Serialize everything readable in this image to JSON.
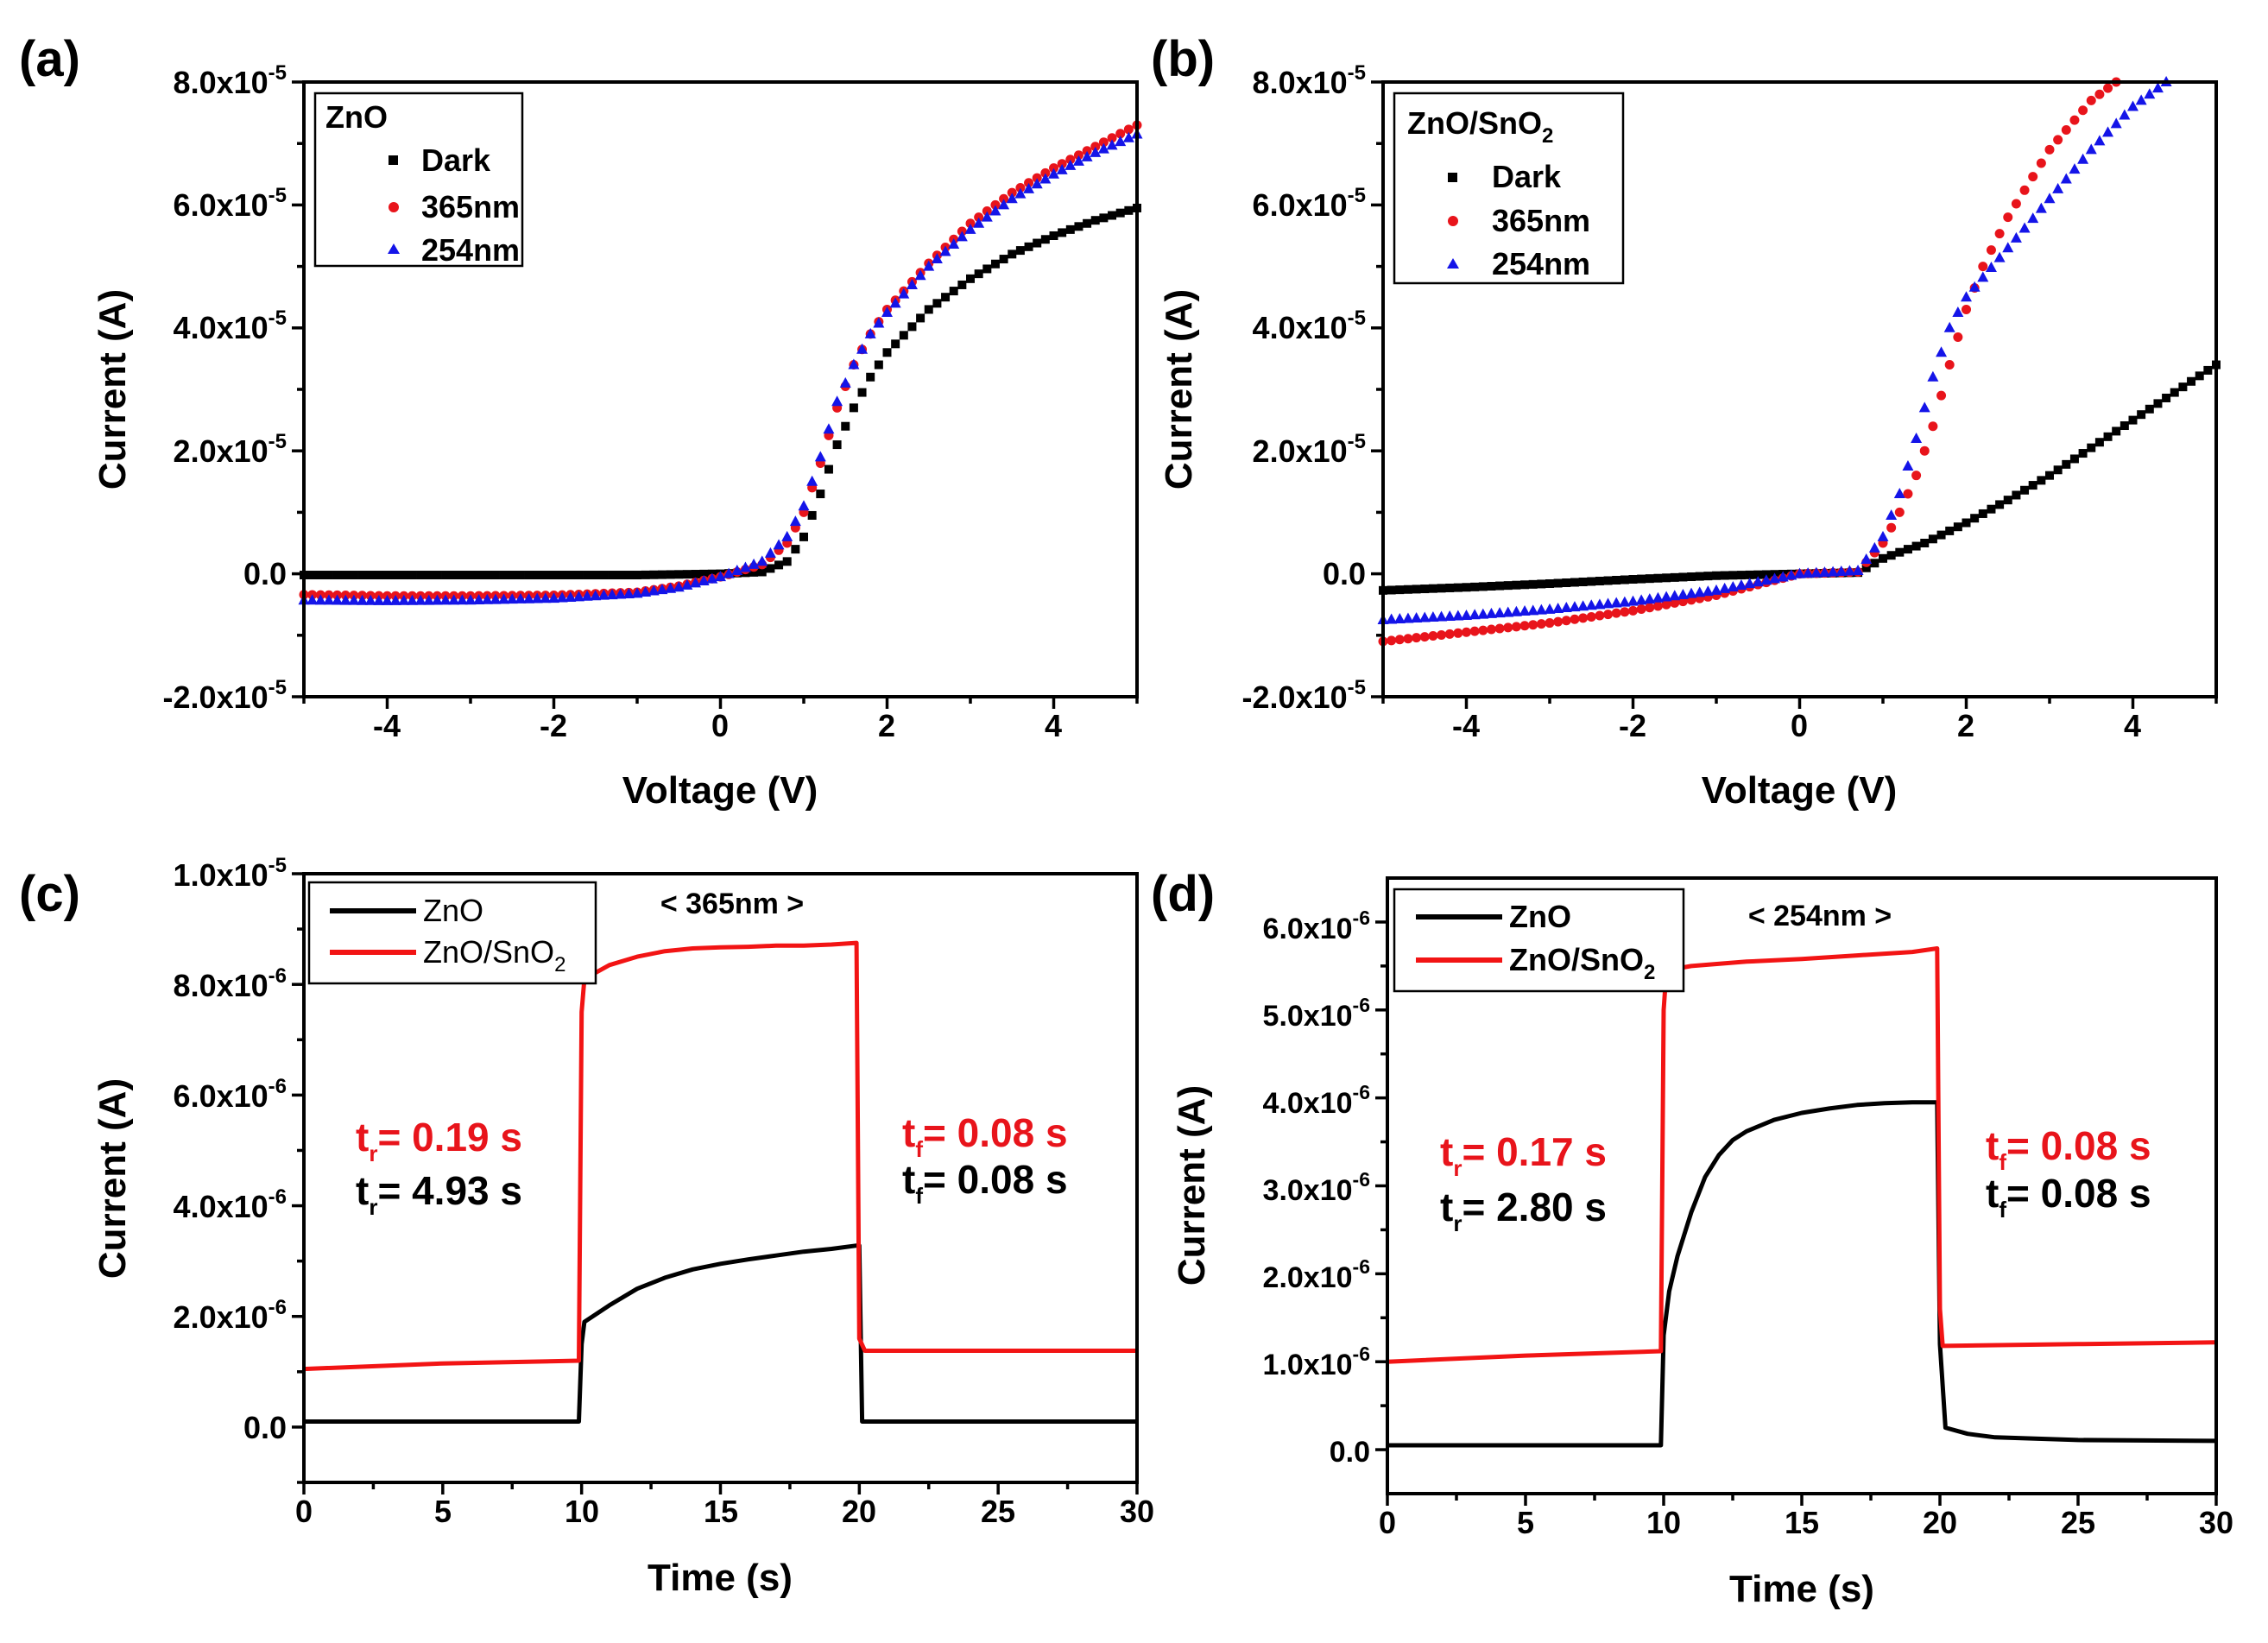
{
  "colors": {
    "black": "#000000",
    "red": "#e8141b",
    "blue": "#1414e8",
    "red_line": "#f21414"
  },
  "panels": {
    "a": {
      "letter": "(a)",
      "xlabel": "Voltage (V)",
      "ylabel": "Current (A)",
      "legend_title": "ZnO",
      "legend": [
        "Dark",
        "365nm",
        "254nm"
      ],
      "xticks": [
        "-4",
        "-2",
        "0",
        "2",
        "4"
      ],
      "yticks": [
        {
          "m": "8.0x10",
          "e": "-5"
        },
        {
          "m": "6.0x10",
          "e": "-5"
        },
        {
          "m": "4.0x10",
          "e": "-5"
        },
        {
          "m": "2.0x10",
          "e": "-5"
        },
        {
          "m": "0.0",
          "e": ""
        },
        {
          "m": "-2.0x10",
          "e": "-5"
        }
      ]
    },
    "b": {
      "letter": "(b)",
      "xlabel": "Voltage (V)",
      "ylabel": "Current (A)",
      "legend_title": "ZnO/SnO",
      "legend_title_sub": "2",
      "legend": [
        "Dark",
        "365nm",
        "254nm"
      ],
      "xticks": [
        "-4",
        "-2",
        "0",
        "2",
        "4"
      ],
      "yticks": [
        {
          "m": "8.0x10",
          "e": "-5"
        },
        {
          "m": "6.0x10",
          "e": "-5"
        },
        {
          "m": "4.0x10",
          "e": "-5"
        },
        {
          "m": "2.0x10",
          "e": "-5"
        },
        {
          "m": "0.0",
          "e": ""
        },
        {
          "m": "-2.0x10",
          "e": "-5"
        }
      ]
    },
    "c": {
      "letter": "(c)",
      "xlabel": "Time (s)",
      "ylabel": "Current (A)",
      "wavelength": "< 365nm >",
      "legend": [
        "ZnO",
        "ZnO/SnO"
      ],
      "legend_sub": "2",
      "rise_label": "t",
      "rise_sub": "r",
      "fall_sub": "f",
      "rise_red": "= 0.19 s",
      "rise_black": "= 4.93 s",
      "fall_red": "= 0.08 s",
      "fall_black": "= 0.08 s",
      "xticks": [
        "0",
        "5",
        "10",
        "15",
        "20",
        "25",
        "30"
      ],
      "yticks": [
        {
          "m": "1.0x10",
          "e": "-5"
        },
        {
          "m": "8.0x10",
          "e": "-6"
        },
        {
          "m": "6.0x10",
          "e": "-6"
        },
        {
          "m": "4.0x10",
          "e": "-6"
        },
        {
          "m": "2.0x10",
          "e": "-6"
        },
        {
          "m": "0.0",
          "e": ""
        }
      ]
    },
    "d": {
      "letter": "(d)",
      "xlabel": "Time (s)",
      "ylabel": "Current (A)",
      "wavelength": "< 254nm >",
      "legend": [
        "ZnO",
        "ZnO/SnO"
      ],
      "legend_sub": "2",
      "rise_label": "t",
      "rise_sub": "r",
      "fall_sub": "f",
      "rise_red": "= 0.17 s",
      "rise_black": "= 2.80 s",
      "fall_red": "= 0.08 s",
      "fall_black": "= 0.08 s",
      "xticks": [
        "0",
        "5",
        "10",
        "15",
        "20",
        "25",
        "30"
      ],
      "yticks": [
        {
          "m": "6.0x10",
          "e": "-6"
        },
        {
          "m": "5.0x10",
          "e": "-6"
        },
        {
          "m": "4.0x10",
          "e": "-6"
        },
        {
          "m": "3.0x10",
          "e": "-6"
        },
        {
          "m": "2.0x10",
          "e": "-6"
        },
        {
          "m": "1.0x10",
          "e": "-6"
        },
        {
          "m": "0.0",
          "e": ""
        }
      ]
    }
  },
  "chart_data": [
    {
      "type": "scatter",
      "panel": "a",
      "xlabel": "Voltage (V)",
      "ylabel": "Current (A)",
      "xlim": [
        -5,
        5
      ],
      "ylim": [
        -2e-05,
        8e-05
      ],
      "legend_title": "ZnO",
      "legend_position": "top-left",
      "series": [
        {
          "name": "Dark",
          "marker": "square",
          "color": "#000000",
          "x": [
            -5,
            -4,
            -3,
            -2,
            -1,
            0,
            0.5,
            0.8,
            1.0,
            1.2,
            1.4,
            1.6,
            1.8,
            2.0,
            2.5,
            3.0,
            3.5,
            4.0,
            4.5,
            5.0
          ],
          "y": [
            -2e-07,
            -2e-07,
            -2e-07,
            -2e-07,
            -2e-07,
            0,
            3e-07,
            2e-06,
            6e-06,
            1.3e-05,
            2.1e-05,
            2.7e-05,
            3.2e-05,
            3.6e-05,
            4.3e-05,
            4.8e-05,
            5.2e-05,
            5.5e-05,
            5.75e-05,
            5.95e-05
          ]
        },
        {
          "name": "365nm",
          "marker": "circle",
          "color": "#e8141b",
          "x": [
            -5,
            -4,
            -3,
            -2,
            -1,
            -0.5,
            0,
            0.5,
            0.8,
            1.0,
            1.2,
            1.4,
            1.6,
            1.8,
            2.0,
            2.5,
            3.0,
            3.5,
            4.0,
            4.5,
            5.0
          ],
          "y": [
            -3.4e-06,
            -3.6e-06,
            -3.6e-06,
            -3.5e-06,
            -3e-06,
            -2e-06,
            -5e-07,
            1.5e-06,
            5e-06,
            1e-05,
            1.8e-05,
            2.7e-05,
            3.4e-05,
            3.9e-05,
            4.3e-05,
            5.05e-05,
            5.7e-05,
            6.2e-05,
            6.6e-05,
            6.95e-05,
            7.3e-05
          ]
        },
        {
          "name": "254nm",
          "marker": "triangle",
          "color": "#1414e8",
          "x": [
            -5,
            -4,
            -3,
            -2,
            -1,
            -0.5,
            0,
            0.5,
            0.8,
            1.0,
            1.2,
            1.4,
            1.6,
            1.8,
            2.0,
            2.5,
            3.0,
            3.5,
            4.0,
            4.5,
            5.0
          ],
          "y": [
            -4.3e-06,
            -4.4e-06,
            -4.3e-06,
            -4e-06,
            -3.2e-06,
            -2.2e-06,
            -5e-07,
            2e-06,
            6e-06,
            1.1e-05,
            1.9e-05,
            2.8e-05,
            3.4e-05,
            3.9e-05,
            4.25e-05,
            5e-05,
            5.6e-05,
            6.1e-05,
            6.5e-05,
            6.85e-05,
            7.15e-05
          ]
        }
      ]
    },
    {
      "type": "scatter",
      "panel": "b",
      "xlabel": "Voltage (V)",
      "ylabel": "Current (A)",
      "xlim": [
        -5,
        5
      ],
      "ylim": [
        -2e-05,
        8e-05
      ],
      "legend_title": "ZnO/SnO2",
      "legend_position": "top-left",
      "series": [
        {
          "name": "Dark",
          "marker": "square",
          "color": "#000000",
          "x": [
            -5,
            -4,
            -3,
            -2,
            -1,
            0,
            0.7,
            1.0,
            1.5,
            2.0,
            2.5,
            3.0,
            3.5,
            4.0,
            4.5,
            5.0
          ],
          "y": [
            -2.7e-06,
            -2.2e-06,
            -1.6e-06,
            -9e-07,
            -3e-07,
            0,
            2e-07,
            2.5e-06,
            5e-06,
            8.3e-06,
            1.2e-05,
            1.6e-05,
            2.05e-05,
            2.5e-05,
            2.95e-05,
            3.4e-05
          ]
        },
        {
          "name": "365nm",
          "marker": "circle",
          "color": "#e8141b",
          "x": [
            -5,
            -4,
            -3,
            -2,
            -1,
            0,
            0.7,
            1.0,
            1.2,
            1.4,
            1.6,
            1.8,
            2.0,
            2.2,
            2.5,
            3.0,
            3.5,
            3.8
          ],
          "y": [
            -1.1e-05,
            -9.5e-06,
            -8e-06,
            -6e-06,
            -3.5e-06,
            0,
            3e-07,
            5e-06,
            1e-05,
            1.6e-05,
            2.4e-05,
            3.4e-05,
            4.3e-05,
            5e-05,
            5.8e-05,
            6.9e-05,
            7.7e-05,
            8e-05
          ]
        },
        {
          "name": "254nm",
          "marker": "triangle",
          "color": "#1414e8",
          "x": [
            -5,
            -4,
            -3,
            -2,
            -1,
            0,
            0.7,
            1.0,
            1.2,
            1.4,
            1.6,
            1.8,
            2.0,
            2.5,
            3.0,
            3.5,
            4.0,
            4.4
          ],
          "y": [
            -7.5e-06,
            -6.8e-06,
            -5.8e-06,
            -4.5e-06,
            -2.7e-06,
            0,
            5e-07,
            6e-06,
            1.3e-05,
            2.2e-05,
            3.2e-05,
            4e-05,
            4.5e-05,
            5.3e-05,
            6.1e-05,
            6.9e-05,
            7.6e-05,
            8e-05
          ]
        }
      ]
    },
    {
      "type": "line",
      "panel": "c",
      "xlabel": "Time (s)",
      "ylabel": "Current (A)",
      "xlim": [
        0,
        30
      ],
      "ylim": [
        -1e-06,
        1e-05
      ],
      "legend_position": "top-left",
      "series": [
        {
          "name": "ZnO",
          "color": "#000000",
          "x": [
            0,
            9.9,
            10.0,
            10.1,
            11,
            12,
            13,
            14,
            15,
            16,
            17,
            18,
            19,
            19.9,
            20.0,
            20.1,
            25,
            30
          ],
          "y": [
            1e-07,
            1e-07,
            1.5e-06,
            1.9e-06,
            2.2e-06,
            2.5e-06,
            2.7e-06,
            2.85e-06,
            2.95e-06,
            3.03e-06,
            3.1e-06,
            3.17e-06,
            3.22e-06,
            3.28e-06,
            3.28e-06,
            1e-07,
            1e-07,
            1e-07
          ]
        },
        {
          "name": "ZnO/SnO2",
          "color": "#f21414",
          "x": [
            0,
            5,
            9.9,
            10.0,
            10.1,
            11,
            12,
            13,
            14,
            15,
            16,
            17,
            18,
            19,
            19.9,
            20.0,
            20.2,
            25,
            30
          ],
          "y": [
            1.05e-06,
            1.15e-06,
            1.2e-06,
            7.5e-06,
            8.1e-06,
            8.35e-06,
            8.5e-06,
            8.6e-06,
            8.65e-06,
            8.67e-06,
            8.68e-06,
            8.7e-06,
            8.7e-06,
            8.72e-06,
            8.75e-06,
            1.6e-06,
            1.38e-06,
            1.38e-06,
            1.38e-06
          ]
        }
      ],
      "annotations": [
        "< 365nm >",
        "tr= 0.19 s",
        "tr= 4.93 s",
        "tf= 0.08 s",
        "tf= 0.08 s"
      ]
    },
    {
      "type": "line",
      "panel": "d",
      "xlabel": "Time (s)",
      "ylabel": "Current (A)",
      "xlim": [
        0,
        30
      ],
      "ylim": [
        -5e-07,
        6.5e-06
      ],
      "legend_position": "top-left",
      "series": [
        {
          "name": "ZnO",
          "color": "#000000",
          "x": [
            0,
            9.9,
            10.0,
            10.2,
            10.5,
            11,
            11.5,
            12,
            12.5,
            13,
            14,
            15,
            16,
            17,
            18,
            19,
            19.9,
            20.0,
            20.2,
            21,
            22,
            25,
            30
          ],
          "y": [
            5e-08,
            5e-08,
            1.3e-06,
            1.8e-06,
            2.2e-06,
            2.7e-06,
            3.1e-06,
            3.35e-06,
            3.52e-06,
            3.62e-06,
            3.75e-06,
            3.83e-06,
            3.88e-06,
            3.92e-06,
            3.94e-06,
            3.95e-06,
            3.95e-06,
            1.2e-06,
            2.5e-07,
            1.8e-07,
            1.4e-07,
            1.1e-07,
            1e-07
          ]
        },
        {
          "name": "ZnO/SnO2",
          "color": "#f21414",
          "x": [
            0,
            5,
            9.9,
            10.0,
            10.1,
            11,
            13,
            15,
            17,
            19,
            19.9,
            20.0,
            20.1,
            25,
            30
          ],
          "y": [
            1e-06,
            1.07e-06,
            1.12e-06,
            5e-06,
            5.45e-06,
            5.5e-06,
            5.55e-06,
            5.58e-06,
            5.62e-06,
            5.66e-06,
            5.7e-06,
            1.6e-06,
            1.18e-06,
            1.2e-06,
            1.22e-06
          ]
        }
      ],
      "annotations": [
        "< 254nm >",
        "tr= 0.17 s",
        "tr= 2.80 s",
        "tf= 0.08 s",
        "tf= 0.08 s"
      ]
    }
  ]
}
